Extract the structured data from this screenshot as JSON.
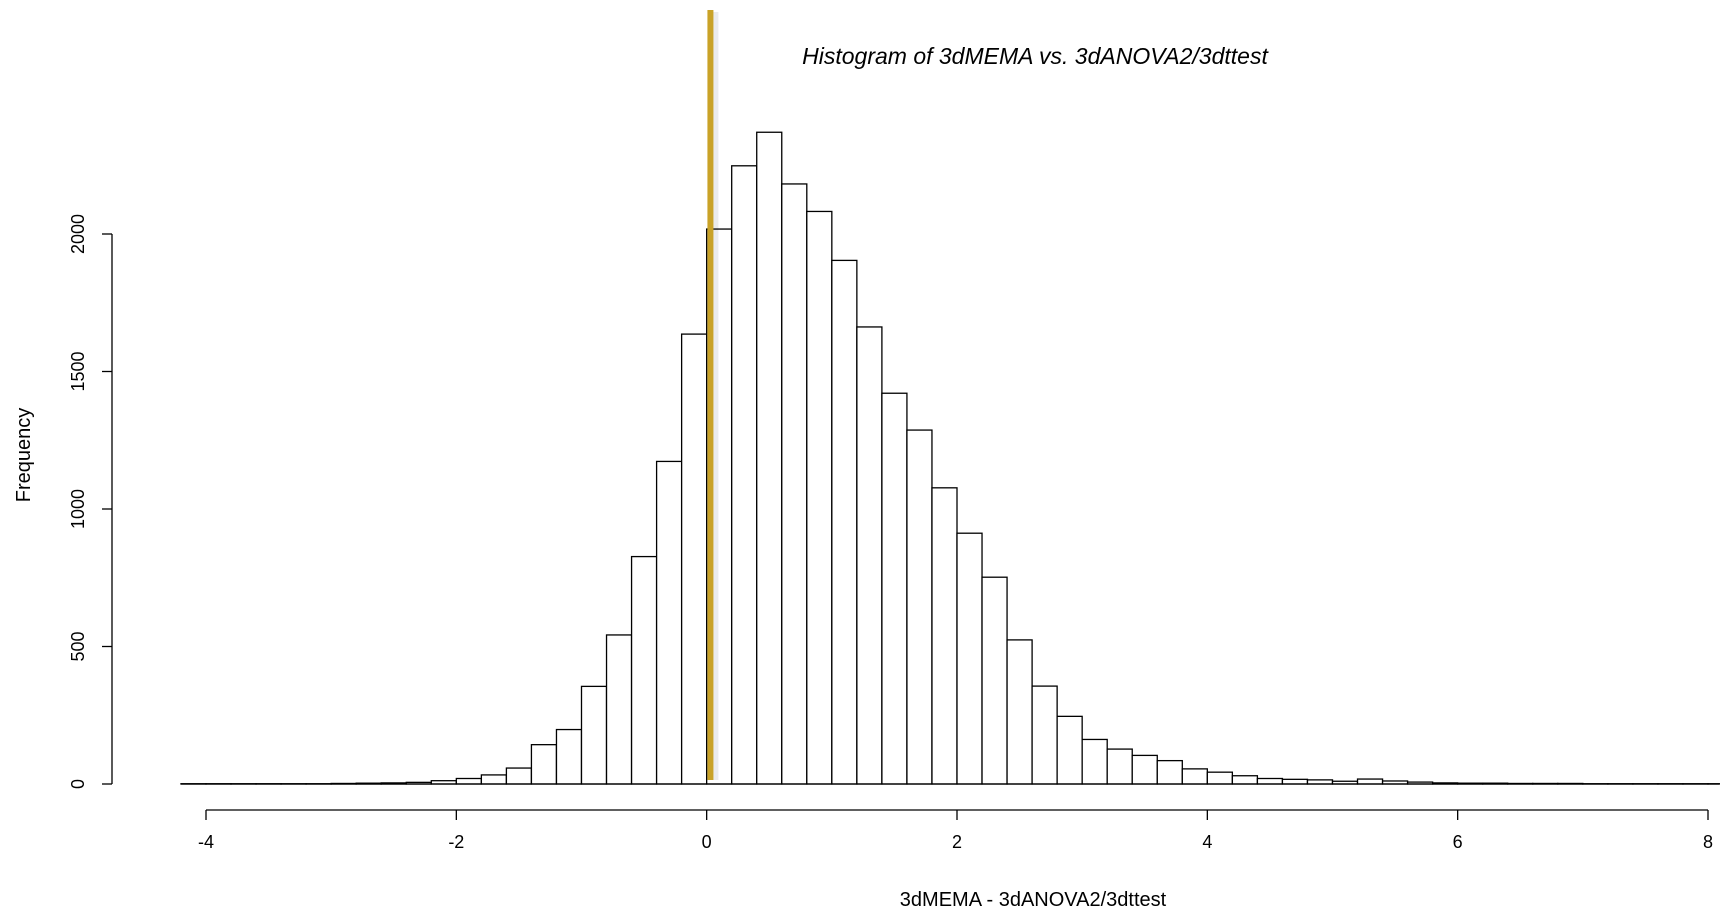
{
  "chart_data": {
    "type": "bar",
    "title": "Histogram of 3dMEMA vs. 3dANOVA2/3dttest",
    "xlabel": "3dMEMA - 3dANOVA2/3dttest",
    "ylabel": "Frequency",
    "xlim": [
      -4,
      8
    ],
    "ylim": [
      0,
      2000
    ],
    "xticks": [
      -4,
      -2,
      0,
      2,
      4,
      6,
      8
    ],
    "yticks": [
      0,
      500,
      1000,
      1500,
      2000
    ],
    "bin_start": -4.2,
    "bin_width": 0.2,
    "values": [
      1,
      1,
      1,
      1,
      1,
      1,
      2,
      3,
      4,
      6,
      12,
      20,
      33,
      58,
      143,
      198,
      355,
      542,
      827,
      1173,
      1636,
      2018,
      2248,
      2370,
      2182,
      2082,
      1904,
      1662,
      1421,
      1287,
      1077,
      912,
      752,
      524,
      356,
      246,
      162,
      127,
      104,
      85,
      55,
      43,
      30,
      20,
      17,
      15,
      10,
      18,
      11,
      7,
      4,
      3,
      3,
      2,
      2,
      2,
      1,
      1,
      1,
      1,
      1,
      1,
      1,
      1,
      1
    ],
    "reference_line": {
      "x": 0.03,
      "color": "#C9A227"
    },
    "grid": false,
    "legend": "none"
  }
}
